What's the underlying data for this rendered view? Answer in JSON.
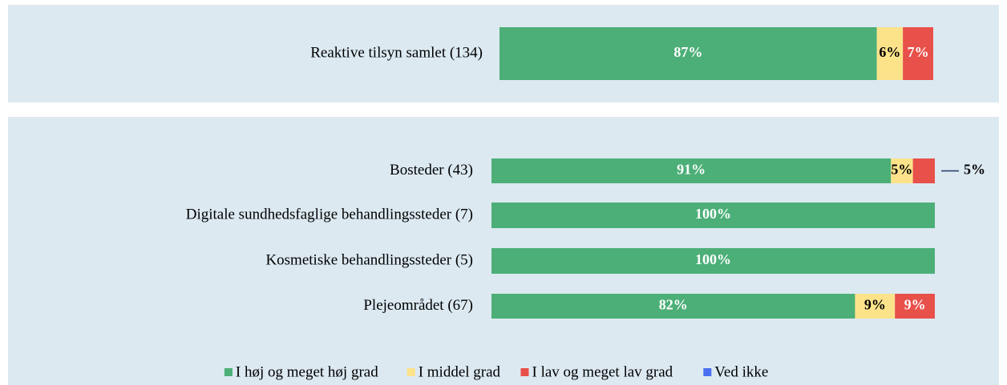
{
  "chart_data": [
    {
      "type": "bar",
      "orientation": "horizontal",
      "stacked": true,
      "categories": [
        "Reaktive tilsyn samlet (134)"
      ],
      "series": [
        {
          "color": "#4caf78",
          "values": [
            87
          ],
          "value_labels": [
            "87%"
          ]
        },
        {
          "color": "#fce38a",
          "values": [
            6
          ],
          "value_labels": [
            "6%"
          ]
        },
        {
          "color": "#e8504a",
          "values": [
            7
          ],
          "value_labels": [
            "7%"
          ]
        },
        {
          "color": "#4a6ff0",
          "values": [
            0
          ],
          "value_labels": [
            null
          ]
        }
      ]
    },
    {
      "type": "bar",
      "orientation": "horizontal",
      "stacked": true,
      "categories": [
        "Bosteder (43)",
        "Digitale sundhedsfaglige behandlingssteder (7)",
        "Kosmetiske behandlingssteder (5)",
        "Plejeområdet (67)"
      ],
      "series": [
        {
          "name": "I høj og meget høj grad",
          "color": "#4caf78",
          "values": [
            91,
            100,
            100,
            82
          ],
          "value_labels": [
            "91%",
            "100%",
            "100%",
            "82%"
          ]
        },
        {
          "name": "I middel grad",
          "color": "#fce38a",
          "values": [
            5,
            0,
            0,
            9
          ],
          "value_labels": [
            "5%",
            null,
            null,
            "9%"
          ]
        },
        {
          "name": "I lav og meget lav grad",
          "color": "#e8504a",
          "values": [
            5,
            0,
            0,
            9
          ],
          "value_labels": [
            "5%",
            null,
            null,
            "9%"
          ]
        },
        {
          "name": "Ved ikke",
          "color": "#4a6ff0",
          "values": [
            0,
            0,
            0,
            0
          ],
          "value_labels": [
            null,
            null,
            null,
            null
          ]
        }
      ],
      "legend": "bottom"
    }
  ]
}
